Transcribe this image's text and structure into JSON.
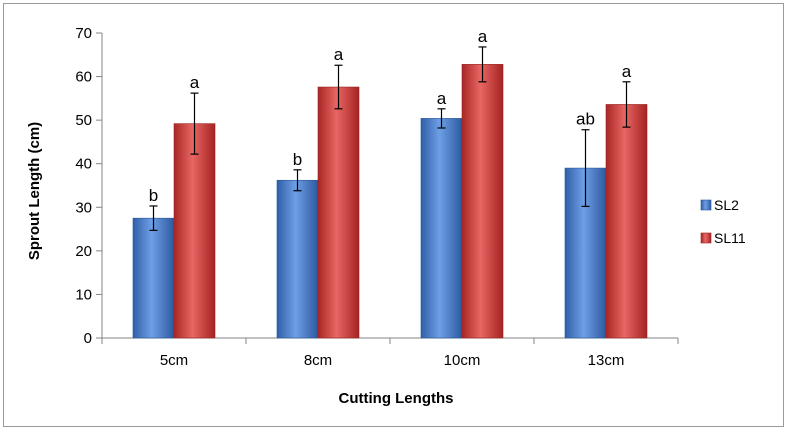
{
  "chart_data": {
    "type": "bar",
    "title": "",
    "xlabel": "Cutting Lengths",
    "ylabel": "Sprout Length (cm)",
    "ylim": [
      0,
      70
    ],
    "yticks": [
      "0",
      "10",
      "20",
      "30",
      "40",
      "50",
      "60",
      "70"
    ],
    "categories": [
      "5cm",
      "8cm",
      "10cm",
      "13cm"
    ],
    "legend_position": "right",
    "grid": false,
    "series": [
      {
        "name": "SL2",
        "color": "#4a7fd4",
        "values": [
          27.5,
          36.2,
          50.4,
          39.0
        ],
        "error": [
          2.8,
          2.4,
          2.2,
          8.8
        ],
        "labels": [
          "b",
          "b",
          "a",
          "ab"
        ]
      },
      {
        "name": "SL11",
        "color": "#d43d3a",
        "values": [
          49.2,
          57.6,
          62.8,
          53.6
        ],
        "error": [
          7.0,
          5.0,
          4.0,
          5.2
        ],
        "labels": [
          "a",
          "a",
          "a",
          "a"
        ]
      }
    ]
  }
}
